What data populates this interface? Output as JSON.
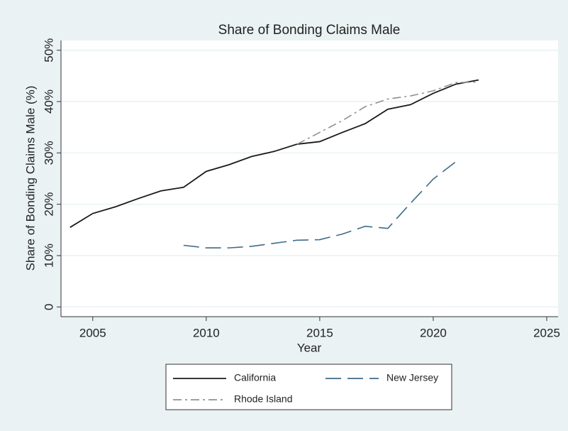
{
  "chart_data": {
    "type": "line",
    "title": "Share of Bonding Claims Male",
    "x_label": "Year",
    "y_label": "Share of Bonding Claims Male (%)",
    "x": [
      2004,
      2005,
      2006,
      2007,
      2008,
      2009,
      2010,
      2011,
      2012,
      2013,
      2014,
      2015,
      2016,
      2017,
      2018,
      2019,
      2020,
      2021,
      2022
    ],
    "series": [
      {
        "name": "California",
        "color": "#1a1a1a",
        "dash": "solid",
        "values": [
          15.5,
          18.2,
          19.5,
          21.1,
          22.6,
          23.3,
          26.4,
          27.7,
          29.3,
          30.3,
          31.7,
          32.2,
          34.0,
          35.7,
          38.5,
          39.4,
          41.6,
          43.4,
          44.2
        ]
      },
      {
        "name": "New Jersey",
        "color": "#3e6b8a",
        "dash": "dashed",
        "values": [
          null,
          null,
          null,
          null,
          null,
          12.0,
          11.5,
          11.5,
          11.8,
          12.4,
          13.0,
          13.1,
          14.2,
          15.7,
          15.3,
          20.2,
          24.9,
          28.3,
          null
        ]
      },
      {
        "name": "Rhode Island",
        "color": "#909090",
        "dash": "dashdot",
        "values": [
          null,
          null,
          null,
          null,
          null,
          null,
          null,
          null,
          null,
          null,
          31.7,
          34.0,
          36.3,
          39.0,
          40.5,
          41.1,
          42.1,
          43.7,
          43.8
        ]
      }
    ],
    "xlim": [
      2003.6,
      2025.5
    ],
    "xticks": [
      2005,
      2010,
      2015,
      2020,
      2025
    ],
    "ylim": [
      -1.9,
      51.9
    ],
    "yticks": [
      0,
      {
        "value": 10,
        "label": "10%"
      },
      {
        "value": 20,
        "label": "20%"
      },
      {
        "value": 30,
        "label": "30%"
      },
      {
        "value": 40,
        "label": "40%"
      },
      {
        "value": 50,
        "label": "50%"
      }
    ],
    "grid": true,
    "legend": "bottom"
  }
}
